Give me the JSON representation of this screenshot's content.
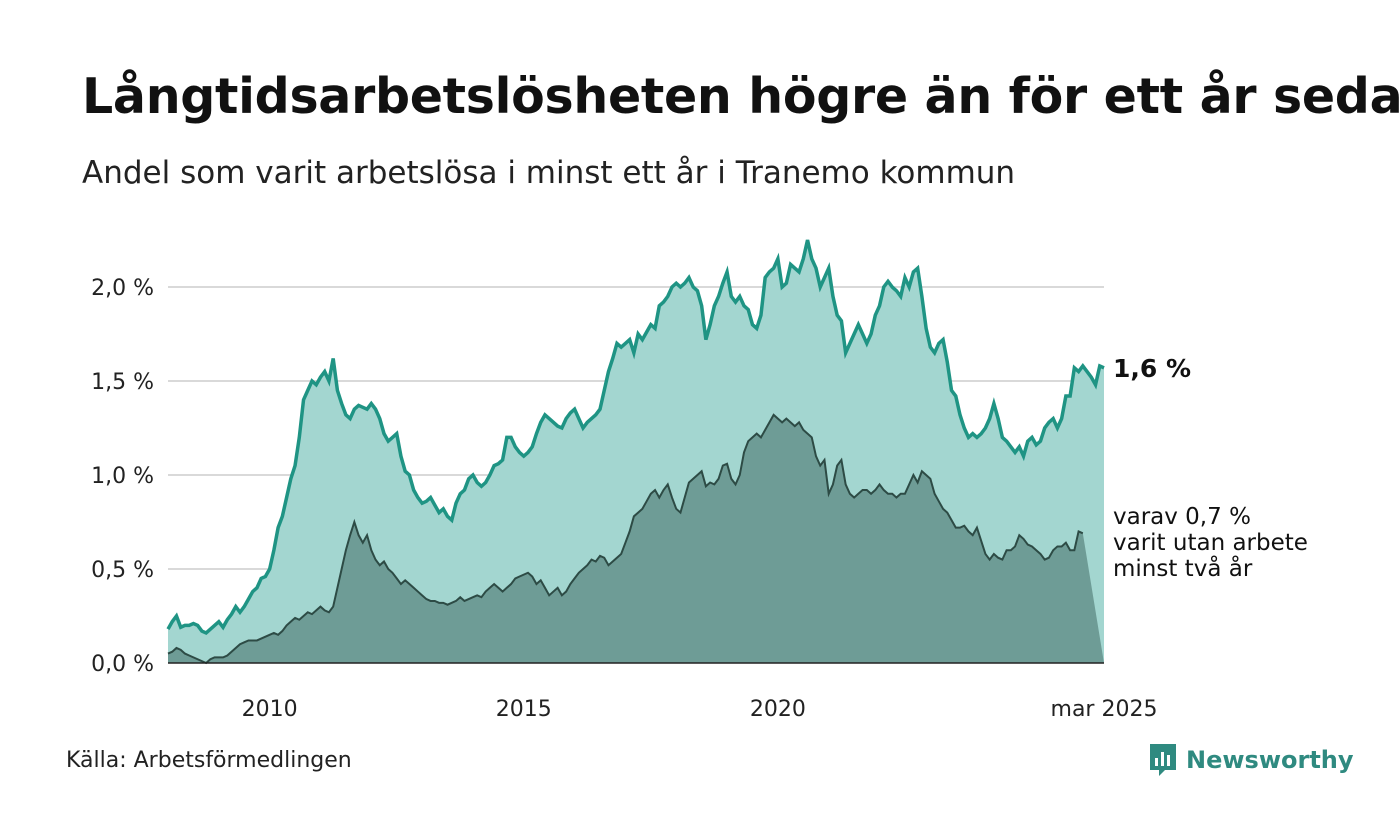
{
  "title": "Långtidsarbetslösheten högre än för ett år sedan",
  "subtitle": "Andel som varit arbetslösa i minst ett år i Tranemo kommun",
  "source": "Källa: Arbetsförmedlingen",
  "brand": "Newsworthy",
  "colors": {
    "series1_line": "#1f9484",
    "series1_fill": "#a3d6d0",
    "series2_line": "#2d4b45",
    "series2_fill": "#6e9c96",
    "grid": "#d9d9d9",
    "brand": "#2f8a80"
  },
  "chart_data": {
    "type": "area",
    "x_start": "2008-01",
    "x_end": "2025-03",
    "x_step": "month",
    "x_ticks": [
      "2010",
      "2015",
      "2020",
      "mar 2025"
    ],
    "y_ticks": [
      "0,0 %",
      "0,5 %",
      "1,0 %",
      "1,5 %",
      "2,0 %"
    ],
    "ylim": [
      0,
      2.25
    ],
    "grid": true,
    "end_label": "1,6 %",
    "sub_label_lines": [
      "varav 0,7 %",
      "varit utan arbete",
      "minst två år"
    ],
    "series": [
      {
        "key": "one_year",
        "values": [
          0.18,
          0.22,
          0.25,
          0.19,
          0.2,
          0.2,
          0.21,
          0.2,
          0.17,
          0.16,
          0.18,
          0.2,
          0.22,
          0.19,
          0.23,
          0.26,
          0.3,
          0.27,
          0.3,
          0.34,
          0.38,
          0.4,
          0.45,
          0.46,
          0.5,
          0.6,
          0.72,
          0.78,
          0.88,
          0.98,
          1.05,
          1.2,
          1.4,
          1.45,
          1.5,
          1.48,
          1.52,
          1.55,
          1.5,
          1.62,
          1.45,
          1.38,
          1.32,
          1.3,
          1.35,
          1.37,
          1.36,
          1.35,
          1.38,
          1.35,
          1.3,
          1.22,
          1.18,
          1.2,
          1.22,
          1.1,
          1.02,
          1.0,
          0.92,
          0.88,
          0.85,
          0.86,
          0.88,
          0.84,
          0.8,
          0.82,
          0.78,
          0.76,
          0.85,
          0.9,
          0.92,
          0.98,
          1.0,
          0.96,
          0.94,
          0.96,
          1.0,
          1.05,
          1.06,
          1.08,
          1.2,
          1.2,
          1.15,
          1.12,
          1.1,
          1.12,
          1.15,
          1.22,
          1.28,
          1.32,
          1.3,
          1.28,
          1.26,
          1.25,
          1.3,
          1.33,
          1.35,
          1.3,
          1.25,
          1.28,
          1.3,
          1.32,
          1.35,
          1.45,
          1.55,
          1.62,
          1.7,
          1.68,
          1.7,
          1.72,
          1.65,
          1.75,
          1.72,
          1.76,
          1.8,
          1.78,
          1.9,
          1.92,
          1.95,
          2.0,
          2.02,
          2.0,
          2.02,
          2.05,
          2.0,
          1.98,
          1.9,
          1.72,
          1.8,
          1.9,
          1.95,
          2.02,
          2.08,
          1.95,
          1.92,
          1.95,
          1.9,
          1.88,
          1.8,
          1.78,
          1.85,
          2.05,
          2.08,
          2.1,
          2.15,
          2.0,
          2.02,
          2.12,
          2.1,
          2.08,
          2.15,
          2.25,
          2.15,
          2.1,
          2.0,
          2.05,
          2.1,
          1.95,
          1.85,
          1.82,
          1.65,
          1.7,
          1.75,
          1.8,
          1.75,
          1.7,
          1.75,
          1.85,
          1.9,
          2.0,
          2.03,
          2.0,
          1.98,
          1.95,
          2.05,
          2.0,
          2.08,
          2.1,
          1.95,
          1.78,
          1.68,
          1.65,
          1.7,
          1.72,
          1.6,
          1.45,
          1.42,
          1.32,
          1.25,
          1.2,
          1.22,
          1.2,
          1.22,
          1.25,
          1.3,
          1.38,
          1.3,
          1.2,
          1.18,
          1.15,
          1.12,
          1.15,
          1.1,
          1.18,
          1.2,
          1.16,
          1.18,
          1.25,
          1.28,
          1.3,
          1.25,
          1.3,
          1.42,
          1.42,
          1.57,
          1.55,
          1.58,
          1.55,
          1.52,
          1.48,
          1.58,
          1.57
        ]
      },
      {
        "key": "two_year",
        "values": [
          0.05,
          0.06,
          0.08,
          0.07,
          0.05,
          0.04,
          0.03,
          0.02,
          0.01,
          0.0,
          0.02,
          0.03,
          0.03,
          0.03,
          0.04,
          0.06,
          0.08,
          0.1,
          0.11,
          0.12,
          0.12,
          0.12,
          0.13,
          0.14,
          0.15,
          0.16,
          0.15,
          0.17,
          0.2,
          0.22,
          0.24,
          0.23,
          0.25,
          0.27,
          0.26,
          0.28,
          0.3,
          0.28,
          0.27,
          0.3,
          0.4,
          0.5,
          0.6,
          0.68,
          0.75,
          0.68,
          0.64,
          0.68,
          0.6,
          0.55,
          0.52,
          0.54,
          0.5,
          0.48,
          0.45,
          0.42,
          0.44,
          0.42,
          0.4,
          0.38,
          0.36,
          0.34,
          0.33,
          0.33,
          0.32,
          0.32,
          0.31,
          0.32,
          0.33,
          0.35,
          0.33,
          0.34,
          0.35,
          0.36,
          0.35,
          0.38,
          0.4,
          0.42,
          0.4,
          0.38,
          0.4,
          0.42,
          0.45,
          0.46,
          0.47,
          0.48,
          0.46,
          0.42,
          0.44,
          0.4,
          0.36,
          0.38,
          0.4,
          0.36,
          0.38,
          0.42,
          0.45,
          0.48,
          0.5,
          0.52,
          0.55,
          0.54,
          0.57,
          0.56,
          0.52,
          0.54,
          0.56,
          0.58,
          0.64,
          0.7,
          0.78,
          0.8,
          0.82,
          0.86,
          0.9,
          0.92,
          0.88,
          0.92,
          0.95,
          0.88,
          0.82,
          0.8,
          0.88,
          0.96,
          0.98,
          1.0,
          1.02,
          0.94,
          0.96,
          0.95,
          0.98,
          1.05,
          1.06,
          0.98,
          0.95,
          1.0,
          1.12,
          1.18,
          1.2,
          1.22,
          1.2,
          1.24,
          1.28,
          1.32,
          1.3,
          1.28,
          1.3,
          1.28,
          1.26,
          1.28,
          1.24,
          1.22,
          1.2,
          1.1,
          1.05,
          1.08,
          0.9,
          0.95,
          1.05,
          1.08,
          0.95,
          0.9,
          0.88,
          0.9,
          0.92,
          0.92,
          0.9,
          0.92,
          0.95,
          0.92,
          0.9,
          0.9,
          0.88,
          0.9,
          0.9,
          0.95,
          1.0,
          0.96,
          1.02,
          1.0,
          0.98,
          0.9,
          0.86,
          0.82,
          0.8,
          0.76,
          0.72,
          0.72,
          0.73,
          0.7,
          0.68,
          0.72,
          0.65,
          0.58,
          0.55,
          0.58,
          0.56,
          0.55,
          0.6,
          0.6,
          0.62,
          0.68,
          0.66,
          0.63,
          0.62,
          0.6,
          0.58,
          0.55,
          0.56,
          0.6,
          0.62,
          0.62,
          0.64,
          0.6,
          0.6,
          0.7,
          0.69
        ]
      }
    ]
  }
}
